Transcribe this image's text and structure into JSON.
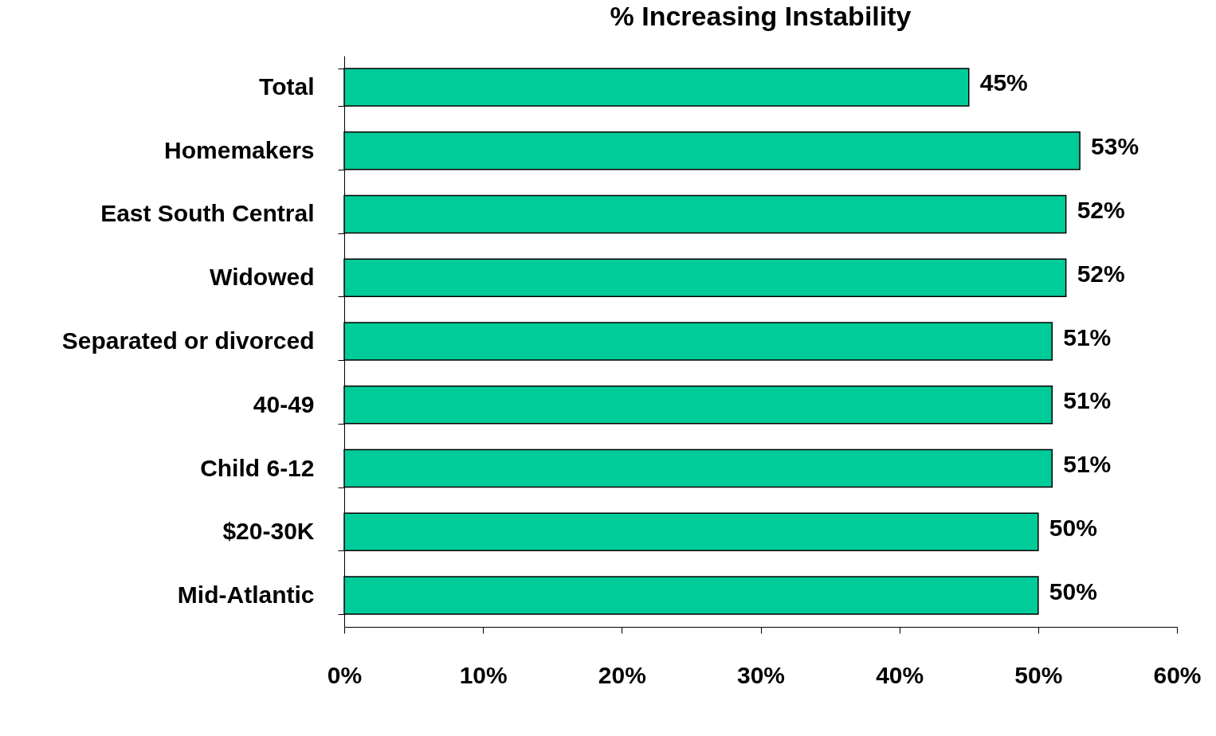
{
  "chart_data": {
    "type": "bar",
    "orientation": "horizontal",
    "title": "% Increasing Instability",
    "categories": [
      "Total",
      "Homemakers",
      "East South Central",
      "Widowed",
      "Separated or divorced",
      "40-49",
      "Child 6-12",
      "$20-30K",
      "Mid-Atlantic"
    ],
    "values": [
      45,
      53,
      52,
      52,
      51,
      51,
      51,
      50,
      50
    ],
    "value_labels": [
      "45%",
      "53%",
      "52%",
      "52%",
      "51%",
      "51%",
      "51%",
      "50%",
      "50%"
    ],
    "color": "#00cc99",
    "xlim": [
      0,
      60
    ],
    "xticks": [
      {
        "value": 0,
        "label": "0%"
      },
      {
        "value": 10,
        "label": "10%"
      },
      {
        "value": 20,
        "label": "20%"
      },
      {
        "value": 30,
        "label": "30%"
      },
      {
        "value": 40,
        "label": "40%"
      },
      {
        "value": 50,
        "label": "50%"
      },
      {
        "value": 60,
        "label": "60%"
      }
    ],
    "grid": false
  }
}
